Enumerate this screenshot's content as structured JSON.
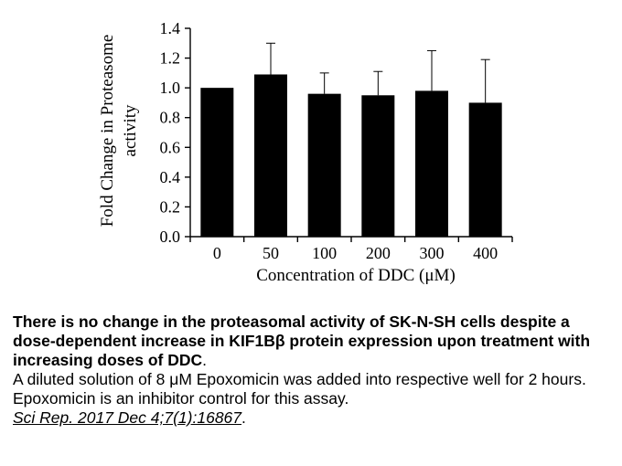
{
  "chart_data": {
    "type": "bar",
    "ylabel_lines": [
      "Fold Change in Proteasome",
      "activity"
    ],
    "xlabel": "Concentration of DDC (μM)",
    "categories": [
      "0",
      "50",
      "100",
      "200",
      "300",
      "400"
    ],
    "values": [
      1.0,
      1.09,
      0.96,
      0.95,
      0.98,
      0.9
    ],
    "errors": [
      0.0,
      0.21,
      0.14,
      0.16,
      0.27,
      0.29
    ],
    "ylim": [
      0,
      1.4
    ],
    "yticks": [
      "0.0",
      "0.2",
      "0.4",
      "0.6",
      "0.8",
      "1.0",
      "1.2",
      "1.4"
    ],
    "bar_color": "#000000",
    "grid": false
  },
  "caption": {
    "bold": "There is no change in the proteasomal activity of SK-N-SH cells despite a dose-dependent increase in KIF1Bβ protein expression upon treatment with increasing doses of DDC",
    "bold_end": ".",
    "line2": "A diluted solution of 8 μM Epoxomicin was added into respective well for 2 hours. Epoxomicin is an inhibitor control for this assay.",
    "citation": "Sci Rep. 2017 Dec 4;7(1):16867",
    "citation_end": "."
  }
}
